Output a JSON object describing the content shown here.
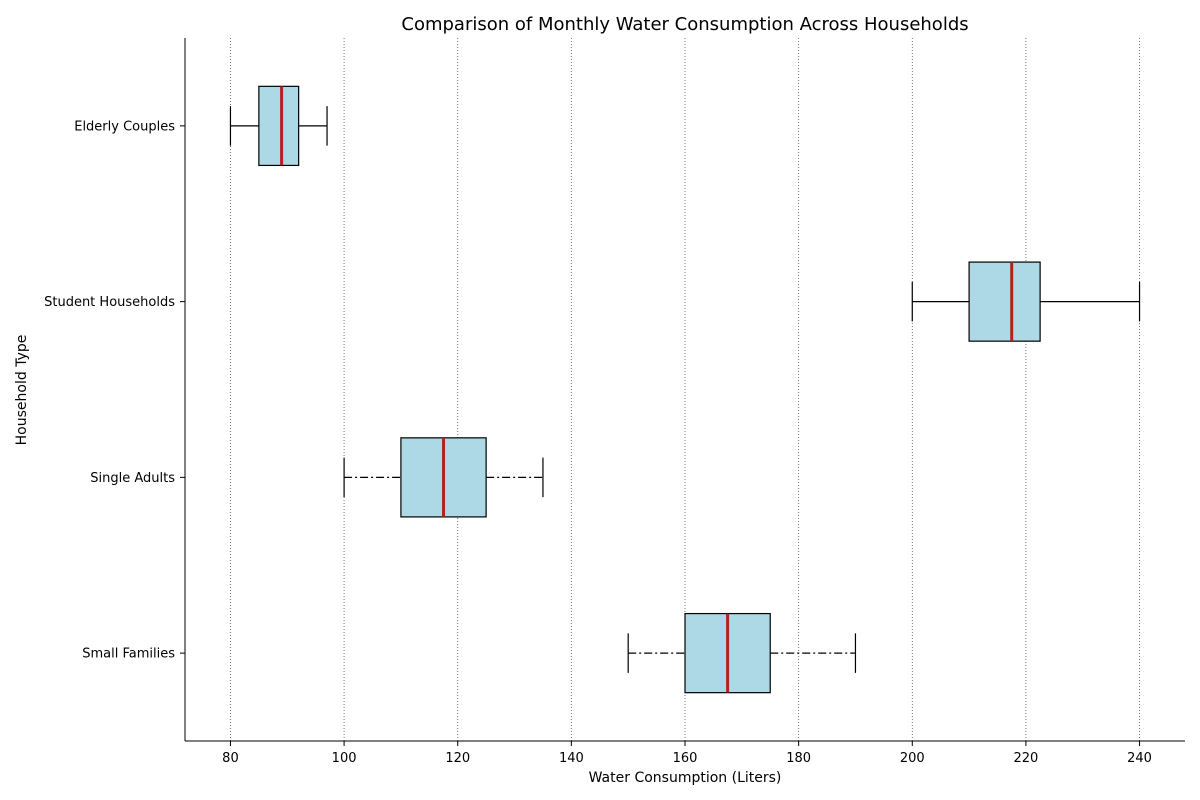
{
  "chart_data": {
    "type": "boxplot",
    "orientation": "horizontal",
    "title": "Comparison of Monthly Water Consumption Across Households",
    "xlabel": "Water Consumption (Liters)",
    "ylabel": "Household Type",
    "xlim": [
      72,
      248
    ],
    "xticks": [
      80,
      100,
      120,
      140,
      160,
      180,
      200,
      220,
      240
    ],
    "grid": {
      "x": true,
      "y": false,
      "style": "dotted"
    },
    "colors": {
      "box_fill": "#add8e6",
      "median": "#b22222",
      "edge": "#000000",
      "grid": "#555555"
    },
    "categories": [
      "Elderly Couples",
      "Student Households",
      "Single Adults",
      "Small Families"
    ],
    "series": [
      {
        "category": "Elderly Couples",
        "whisker_low": 80,
        "q1": 85,
        "median": 89,
        "q3": 92,
        "whisker_high": 97,
        "whisker_style": "solid"
      },
      {
        "category": "Student Households",
        "whisker_low": 200,
        "q1": 210,
        "median": 217.5,
        "q3": 222.5,
        "whisker_high": 240,
        "whisker_style": "solid"
      },
      {
        "category": "Single Adults",
        "whisker_low": 100,
        "q1": 110,
        "median": 117.5,
        "q3": 125,
        "whisker_high": 135,
        "whisker_style": "dashdot"
      },
      {
        "category": "Small Families",
        "whisker_low": 150,
        "q1": 160,
        "median": 167.5,
        "q3": 175,
        "whisker_high": 190,
        "whisker_style": "dashdot"
      }
    ]
  }
}
